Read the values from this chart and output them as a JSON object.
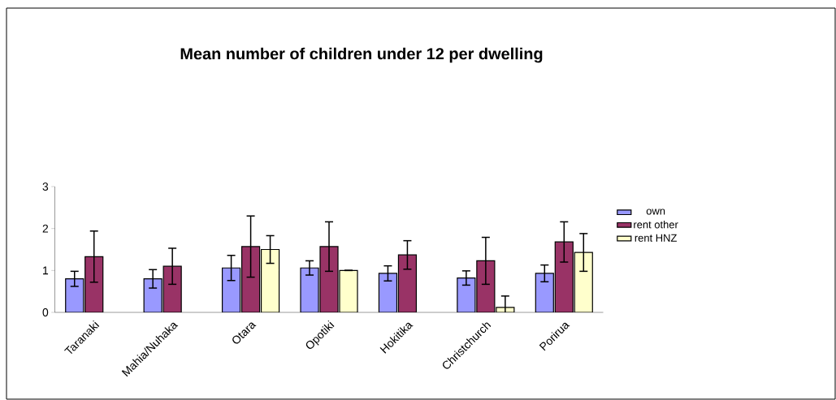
{
  "chart_data": {
    "type": "bar",
    "title": "Mean number of children under 12 per dwelling",
    "categories": [
      "Taranaki",
      "Mahia/Nuhaka",
      "Otara",
      "Opotiki",
      "Hokitika",
      "Christchurch",
      "Porirua"
    ],
    "series": [
      {
        "name": "own",
        "color": "#9999ff",
        "values": [
          0.8,
          0.8,
          1.06,
          1.06,
          0.93,
          0.82,
          0.93
        ],
        "errors": [
          0.18,
          0.22,
          0.3,
          0.17,
          0.18,
          0.17,
          0.2
        ]
      },
      {
        "name": "rent other",
        "color": "#993366",
        "values": [
          1.33,
          1.1,
          1.57,
          1.57,
          1.37,
          1.23,
          1.68
        ],
        "errors": [
          0.61,
          0.43,
          0.73,
          0.59,
          0.34,
          0.56,
          0.48
        ]
      },
      {
        "name": "rent HNZ",
        "color": "#ffffcc",
        "values": [
          null,
          null,
          1.5,
          1.0,
          null,
          0.12,
          1.43
        ],
        "errors": [
          null,
          null,
          0.33,
          null,
          null,
          0.27,
          0.45
        ]
      }
    ],
    "ylim": [
      0,
      3
    ],
    "yticks": [
      0,
      1,
      2,
      3
    ],
    "grid": false,
    "legend": "right"
  }
}
